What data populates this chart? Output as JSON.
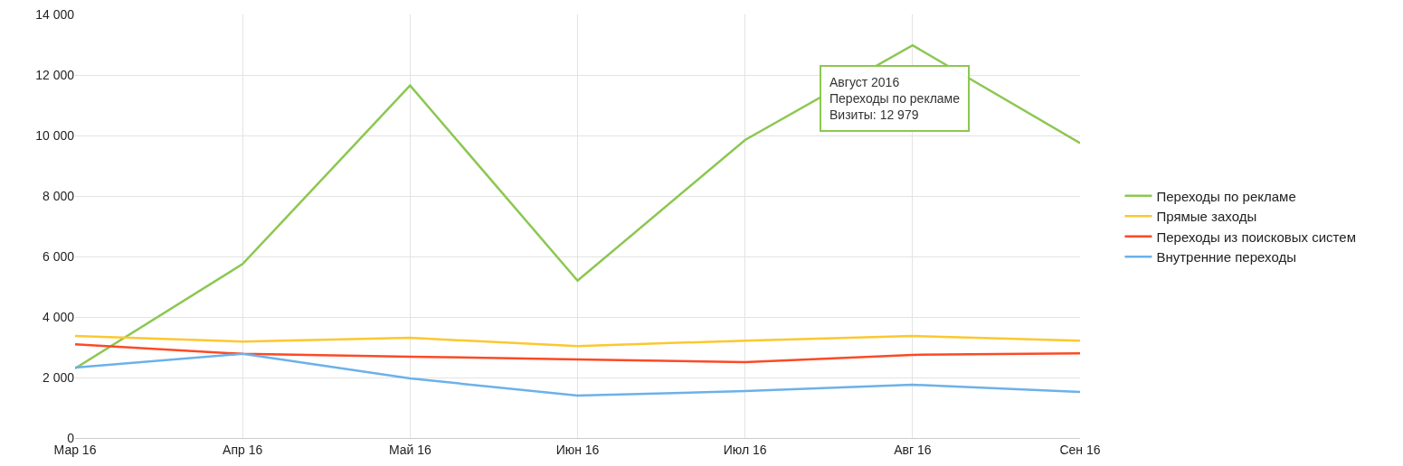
{
  "chart_data": {
    "type": "line",
    "categories": [
      "Мар 16",
      "Апр 16",
      "Май 16",
      "Июн 16",
      "Июл 16",
      "Авг 16",
      "Сен 16"
    ],
    "series": [
      {
        "name": "Переходы по рекламе",
        "color": "#8cc751",
        "values": [
          2300,
          5750,
          11650,
          5200,
          9850,
          12979,
          9750
        ]
      },
      {
        "name": "Прямые заходы",
        "color": "#fcc82f",
        "values": [
          3370,
          3190,
          3310,
          3040,
          3220,
          3370,
          3220
        ]
      },
      {
        "name": "Переходы из поисковых систем",
        "color": "#fb4a26",
        "values": [
          3100,
          2780,
          2690,
          2600,
          2510,
          2750,
          2800
        ]
      },
      {
        "name": "Внутренние переходы",
        "color": "#6cb1ea",
        "values": [
          2330,
          2780,
          1970,
          1400,
          1550,
          1760,
          1520
        ]
      }
    ],
    "ylim": [
      0,
      14000
    ],
    "yticks": [
      {
        "value": 0,
        "label": "0"
      },
      {
        "value": 2000,
        "label": "2 000"
      },
      {
        "value": 4000,
        "label": "4 000"
      },
      {
        "value": 6000,
        "label": "6 000"
      },
      {
        "value": 8000,
        "label": "8 000"
      },
      {
        "value": 10000,
        "label": "10 000"
      },
      {
        "value": 12000,
        "label": "12 000"
      },
      {
        "value": 14000,
        "label": "14 000"
      }
    ],
    "annotations": [
      {
        "text": "Август 2016\nПереходы по рекламе\nВизиты: 12 979",
        "x": "Авг 16",
        "y": 12979
      }
    ],
    "grid": true,
    "legend": "right",
    "marker": "none",
    "line_style": "solid"
  }
}
